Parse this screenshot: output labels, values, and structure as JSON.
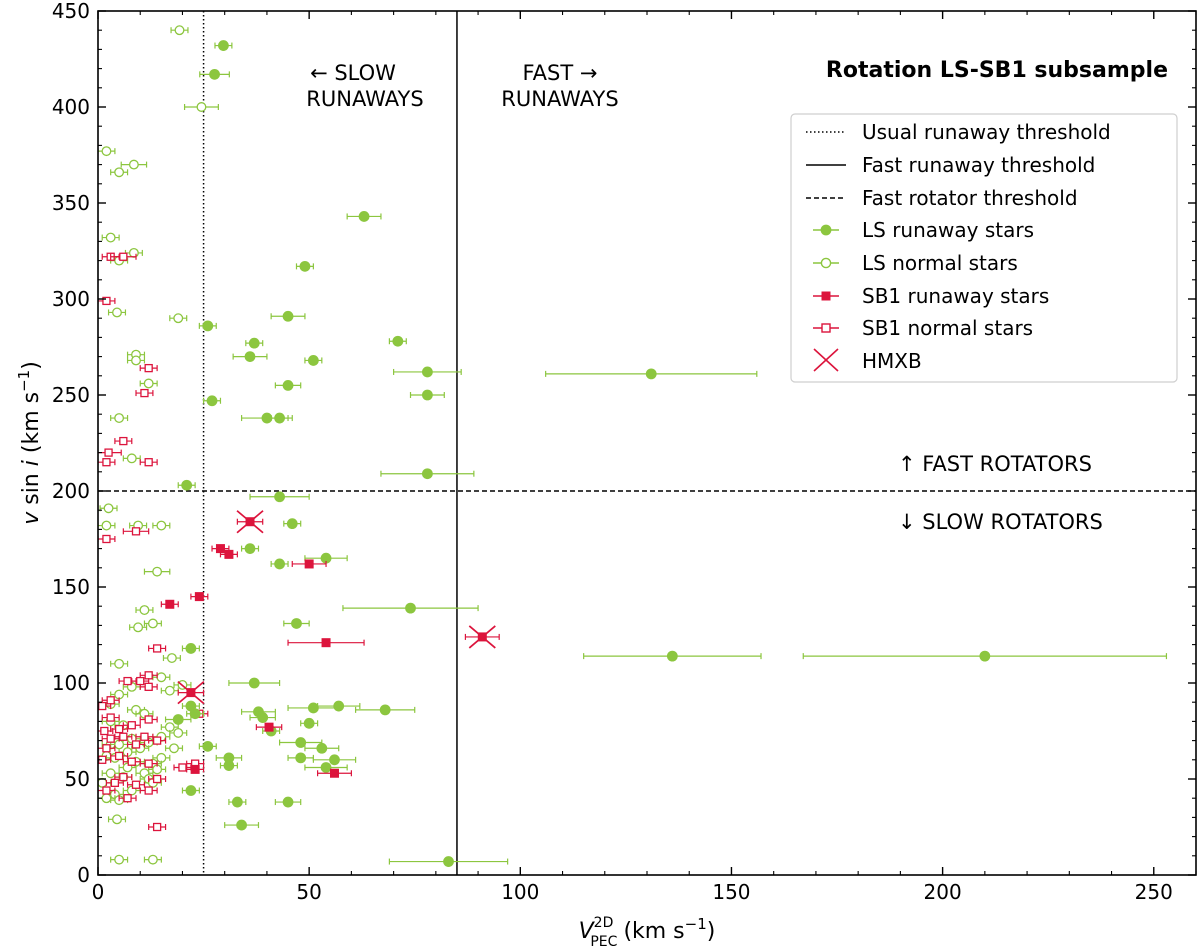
{
  "chart_data": {
    "type": "scatter",
    "title": "Rotation LS-SB1 subsample",
    "xlabel": {
      "main": "V",
      "sup": "2D",
      "sub": "PEC",
      "unit": "(km s",
      "unit_sup": "−1",
      "close": ")"
    },
    "ylabel": {
      "v": "v",
      "sin": " sin ",
      "i": "i",
      "unit": " (km s",
      "unit_sup": "−1",
      "close": ")"
    },
    "xlim": [
      0,
      260
    ],
    "ylim": [
      0,
      450
    ],
    "xticks": [
      0,
      50,
      100,
      150,
      200,
      250
    ],
    "xtick_labels": [
      "0",
      "50",
      "100",
      "150",
      "200",
      "250"
    ],
    "yticks": [
      0,
      50,
      100,
      150,
      200,
      250,
      300,
      350,
      400,
      450
    ],
    "ytick_labels": [
      "0",
      "50",
      "100",
      "150",
      "200",
      "250",
      "300",
      "350",
      "400",
      "450"
    ],
    "thresholds": {
      "usual_runaway_x": 25,
      "fast_runaway_x": 85,
      "fast_rotator_y": 200
    },
    "annotations": {
      "slow_runaways": [
        "← SLOW",
        "RUNAWAYS"
      ],
      "fast_runaways": [
        "FAST →",
        "RUNAWAYS"
      ],
      "fast_rotators": "↑ FAST ROTATORS",
      "slow_rotators": "↓ SLOW ROTATORS"
    },
    "legend": {
      "position": "top-right",
      "entries": [
        "Usual runaway threshold",
        "Fast runaway threshold",
        "Fast rotator threshold",
        "LS runaway stars",
        "LS normal stars",
        "SB1 runaway stars",
        "SB1 normal stars",
        "HMXB"
      ]
    },
    "colors": {
      "ls": "#8cc63f",
      "sb1": "#dc143c",
      "axis": "#000000"
    },
    "series": [
      {
        "name": "LS runaway stars",
        "marker": "circle-filled",
        "points": [
          [
            29.7,
            432,
            2
          ],
          [
            27.6,
            417,
            3.5
          ],
          [
            63,
            343,
            4
          ],
          [
            49,
            317,
            2
          ],
          [
            45,
            291,
            4
          ],
          [
            26,
            286,
            2
          ],
          [
            71,
            278,
            2
          ],
          [
            37,
            277,
            2
          ],
          [
            36,
            270,
            4
          ],
          [
            51,
            268,
            2
          ],
          [
            131,
            261,
            25
          ],
          [
            78,
            262,
            8
          ],
          [
            27,
            247,
            2
          ],
          [
            45,
            255,
            3
          ],
          [
            78,
            250,
            4
          ],
          [
            40,
            238,
            6
          ],
          [
            43,
            238,
            2
          ],
          [
            78,
            209,
            11
          ],
          [
            21,
            203,
            2
          ],
          [
            43,
            197,
            7
          ],
          [
            46,
            183,
            2
          ],
          [
            36,
            170,
            2
          ],
          [
            54,
            165,
            5
          ],
          [
            43,
            162,
            2
          ],
          [
            74,
            139,
            16
          ],
          [
            47,
            131,
            3
          ],
          [
            136,
            114,
            21
          ],
          [
            210,
            114,
            43
          ],
          [
            22,
            118,
            2
          ],
          [
            37,
            100,
            6
          ],
          [
            22,
            88,
            2
          ],
          [
            23,
            84,
            2
          ],
          [
            38,
            85,
            4
          ],
          [
            51,
            87,
            6
          ],
          [
            57,
            88,
            5
          ],
          [
            68,
            86,
            7
          ],
          [
            39,
            82,
            3
          ],
          [
            19,
            81,
            3
          ],
          [
            50,
            79,
            2
          ],
          [
            41,
            75,
            2
          ],
          [
            26,
            67,
            2
          ],
          [
            48,
            69,
            5
          ],
          [
            53,
            66,
            4
          ],
          [
            31,
            61,
            3
          ],
          [
            48,
            61,
            3
          ],
          [
            56,
            60,
            5
          ],
          [
            31,
            57,
            2
          ],
          [
            54,
            56,
            5
          ],
          [
            22,
            44,
            2
          ],
          [
            33,
            38,
            2
          ],
          [
            45,
            38,
            3
          ],
          [
            34,
            26,
            4
          ],
          [
            83,
            7,
            14
          ]
        ]
      },
      {
        "name": "LS normal stars",
        "marker": "circle-open",
        "points": [
          [
            19.3,
            440,
            2
          ],
          [
            24.5,
            400,
            4
          ],
          [
            2,
            377,
            2
          ],
          [
            8.5,
            370,
            3
          ],
          [
            5,
            366,
            2
          ],
          [
            3,
            332,
            2
          ],
          [
            8.5,
            324,
            2
          ],
          [
            5,
            320,
            2
          ],
          [
            4.5,
            293,
            2
          ],
          [
            19,
            290,
            2
          ],
          [
            9,
            271,
            2
          ],
          [
            9,
            268,
            2
          ],
          [
            12,
            256,
            2
          ],
          [
            5,
            238,
            2
          ],
          [
            8,
            217,
            2
          ],
          [
            2.5,
            191,
            2
          ],
          [
            9.5,
            182,
            2
          ],
          [
            15,
            182,
            2
          ],
          [
            2,
            182,
            2
          ],
          [
            14,
            158,
            3
          ],
          [
            11,
            138,
            2
          ],
          [
            13,
            131,
            2
          ],
          [
            9.5,
            129,
            2
          ],
          [
            17.5,
            113,
            2
          ],
          [
            5,
            110,
            2
          ],
          [
            8,
            98,
            2
          ],
          [
            15,
            103,
            2
          ],
          [
            20,
            99,
            2
          ],
          [
            17,
            96,
            2
          ],
          [
            5,
            94,
            2
          ],
          [
            3,
            89,
            2
          ],
          [
            9,
            86,
            2
          ],
          [
            11,
            84,
            2
          ],
          [
            3,
            80,
            2
          ],
          [
            6,
            78,
            2
          ],
          [
            17,
            77,
            2
          ],
          [
            19,
            74,
            2
          ],
          [
            15,
            72,
            2
          ],
          [
            8,
            71,
            2
          ],
          [
            12,
            69,
            2
          ],
          [
            3,
            68,
            2
          ],
          [
            5,
            68,
            2
          ],
          [
            10,
            66,
            2
          ],
          [
            18,
            66,
            2
          ],
          [
            7,
            64,
            2
          ],
          [
            2,
            62,
            2
          ],
          [
            15,
            61,
            2
          ],
          [
            4,
            61,
            2
          ],
          [
            9,
            59,
            2
          ],
          [
            13,
            58,
            2
          ],
          [
            7,
            56,
            2
          ],
          [
            14,
            55,
            2
          ],
          [
            3,
            53,
            2
          ],
          [
            11,
            53,
            2
          ],
          [
            6,
            51,
            2
          ],
          [
            12,
            50,
            2
          ],
          [
            1,
            48,
            2
          ],
          [
            13,
            48,
            2
          ],
          [
            8,
            44,
            2
          ],
          [
            4,
            42,
            2
          ],
          [
            2,
            40,
            2
          ],
          [
            5,
            39,
            2
          ],
          [
            4.5,
            29,
            2
          ],
          [
            5,
            8,
            2
          ],
          [
            13,
            8,
            2
          ]
        ]
      },
      {
        "name": "SB1 runaway stars",
        "marker": "square-filled",
        "points": [
          [
            29,
            170,
            2
          ],
          [
            31,
            167,
            2
          ],
          [
            50,
            162,
            4
          ],
          [
            17,
            141,
            2
          ],
          [
            24,
            145,
            2
          ],
          [
            54,
            121,
            9
          ],
          [
            40.5,
            77,
            3
          ],
          [
            23,
            55,
            2
          ],
          [
            56,
            53,
            4
          ]
        ]
      },
      {
        "name": "SB1 normal stars",
        "marker": "square-open",
        "points": [
          [
            3,
            322,
            2
          ],
          [
            6,
            322,
            3
          ],
          [
            2,
            299,
            2
          ],
          [
            12,
            264,
            2
          ],
          [
            11,
            251,
            2
          ],
          [
            6,
            226,
            2
          ],
          [
            2.5,
            220,
            3
          ],
          [
            12,
            215,
            2
          ],
          [
            2,
            215,
            2
          ],
          [
            9,
            179,
            3
          ],
          [
            2,
            175,
            2
          ],
          [
            14,
            118,
            2
          ],
          [
            12,
            104,
            2
          ],
          [
            7,
            101,
            2
          ],
          [
            10,
            101,
            2
          ],
          [
            12,
            98,
            2
          ],
          [
            3,
            91,
            2
          ],
          [
            1,
            88,
            2
          ],
          [
            24,
            84,
            2
          ],
          [
            3,
            82,
            2
          ],
          [
            12,
            81,
            2
          ],
          [
            8,
            78,
            2
          ],
          [
            5,
            76,
            2
          ],
          [
            1.5,
            75,
            2
          ],
          [
            11,
            72,
            2
          ],
          [
            14,
            70,
            2
          ],
          [
            6,
            72,
            2
          ],
          [
            3,
            71,
            2
          ],
          [
            9,
            68,
            2
          ],
          [
            2,
            66,
            2
          ],
          [
            5,
            62,
            2
          ],
          [
            1,
            60,
            2
          ],
          [
            8,
            59,
            2
          ],
          [
            12,
            58,
            2
          ],
          [
            23,
            58,
            2
          ],
          [
            20,
            56,
            2
          ],
          [
            6,
            51,
            2
          ],
          [
            14,
            50,
            2
          ],
          [
            4,
            48,
            2
          ],
          [
            9,
            47,
            2
          ],
          [
            12,
            44,
            2
          ],
          [
            2,
            44,
            2
          ],
          [
            7,
            40,
            2
          ],
          [
            14,
            25,
            2
          ]
        ]
      },
      {
        "name": "HMXB",
        "marker": "x-big",
        "points": [
          [
            36,
            184,
            3
          ],
          [
            91,
            124,
            4
          ],
          [
            22,
            95,
            3
          ]
        ]
      }
    ]
  }
}
